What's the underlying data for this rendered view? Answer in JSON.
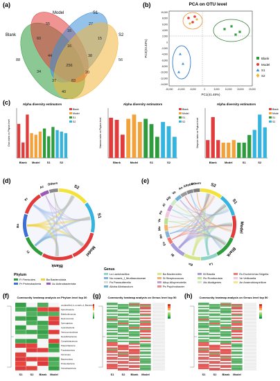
{
  "panels": {
    "a": "(a)",
    "b": "(b)",
    "c": "(c)",
    "d": "(d)",
    "e": "(e)",
    "f": "(f)",
    "g": "(g)",
    "h": "(h)"
  },
  "venn": {
    "sets": [
      "Blank",
      "Model",
      "S1",
      "S2"
    ],
    "colors": [
      "#2e9b3c",
      "#e23b3b",
      "#3d8fd6",
      "#f2b43a"
    ],
    "counts": [
      "88",
      "55",
      "27",
      "56",
      "60",
      "16",
      "15",
      "44",
      "16",
      "38",
      "34",
      "256",
      "20",
      "37",
      "83",
      "40"
    ]
  },
  "pca": {
    "title": "PCA on OTU level",
    "xlabel": "PC1(41.48%)",
    "ylabel": "PC2(23.33%)",
    "xticks": [
      "-15,000",
      "-10,000",
      "-5,000",
      "0",
      "5,000",
      "10,000",
      "15,000",
      "20,000"
    ],
    "yticks": [
      "10,000",
      "8,000",
      "6,000",
      "4,000",
      "2,000",
      "0",
      "-2,000",
      "-4,000",
      "-6,000",
      "-8,000",
      "-10,000",
      "-12,000",
      "-14,000"
    ],
    "legend": [
      "Blank",
      "Model",
      "S1",
      "S2"
    ],
    "colors": [
      "#2e9b3c",
      "#e23b3b",
      "#3d8fd6",
      "#f2b43a"
    ]
  },
  "alpha": {
    "title": "Alpha diversity estimators",
    "groups": [
      "Blank",
      "Model",
      "S1",
      "S2"
    ],
    "legend": [
      "Blank",
      "Model",
      "S1",
      "S2"
    ],
    "colors": [
      "#e23b3b",
      "#f2a23a",
      "#2e9b3c",
      "#35b4e0"
    ],
    "charts": [
      {
        "ylabel": "Chao index on Phylum level",
        "values": [
          2.2,
          1.0,
          2.8,
          1.6,
          1.5,
          1.7,
          1.9,
          1.4,
          2.0,
          1.8,
          1.7,
          1.6
        ]
      },
      {
        "ylabel": "Shannon index on Phylum level",
        "values": [
          1.9,
          1.8,
          1.1,
          1.85,
          2.05,
          1.7,
          1.85,
          1.6,
          1.0,
          1.7,
          1.5,
          1.0
        ]
      },
      {
        "ylabel": "Simpson index on Phylum level",
        "values": [
          0.35,
          0.8,
          0.35,
          0.3,
          0.3,
          0.35,
          0.3,
          0.3,
          0.45,
          0.55,
          0.85,
          0.6
        ]
      }
    ]
  },
  "chord_d": {
    "groups": [
      "S2",
      "S1",
      "Model",
      "Blank"
    ],
    "taxa": [
      "Fi",
      "Ba",
      "Pr",
      "Ac",
      "Others"
    ]
  },
  "chord_e": {
    "groups": [
      "S2",
      "S1",
      "Model",
      "Blank"
    ],
    "taxa": [
      "La",
      "Ba",
      "Bl",
      "Es",
      "Ro",
      "Mu",
      "Ve",
      "Pe",
      "Al",
      "Alp",
      "Ve",
      "An",
      "Alloba",
      "Others"
    ]
  },
  "legend_phylum": {
    "title": "Phylum",
    "items": [
      {
        "text": "Fi Firmicutes",
        "color": "#2e9b3c"
      },
      {
        "text": "Ba Bacteroidota",
        "color": "#f2d13a"
      },
      {
        "text": "Pr Proteobacteria",
        "color": "#3d6fd6"
      },
      {
        "text": "Ac Actinobacteriota",
        "color": "#9b59b6"
      }
    ]
  },
  "legend_genus": {
    "title": "Genus",
    "items": [
      {
        "text": "La Lactobacillus",
        "color": "#8fd3c8"
      },
      {
        "text": "Ba Bacteroides",
        "color": "#d5e58a"
      },
      {
        "text": "Bl Blautia",
        "color": "#a79ad8"
      },
      {
        "text": "Es Escherichia-Shigella",
        "color": "#f07a6a"
      },
      {
        "text": "No norank_f_Muribaculaceae",
        "color": "#7fb2dc"
      },
      {
        "text": "St Streptococcus",
        "color": "#f2b26a"
      },
      {
        "text": "Ro Romboutsia",
        "color": "#b9e08f"
      },
      {
        "text": "Ve Veillonella",
        "color": "#f3c6dc"
      },
      {
        "text": "Pa Parasutterella",
        "color": "#d9d9d9"
      },
      {
        "text": "Allop Alloprevotella",
        "color": "#c69bd2"
      },
      {
        "text": "Alc Akaligenes",
        "color": "#cfe9c7"
      },
      {
        "text": "An Anaerobiospirillum",
        "color": "#f7e58a"
      },
      {
        "text": "Alloba Allobaculum",
        "color": "#6fb0d6"
      },
      {
        "text": "Ps Psychrobacter",
        "color": "#e38d8d"
      }
    ]
  },
  "heat_f": {
    "title": "Community heatmap analysis on Phylum level top 30",
    "cols": [
      "S1",
      "S2",
      "Blank",
      "Model"
    ],
    "rows": [
      "unclassified_k_norank_d_Bacteria",
      "Spirochaetota",
      "Bdellovibrionota",
      "Deinococcota",
      "Synergistota",
      "Cyanobacteria",
      "Verrucomicrobiota",
      "Desulfobacterota",
      "Campilobacterota",
      "Patescibacteria",
      "Fusobacteriota",
      "Firmicutes",
      "Bacteroidota",
      "Proteobacteria",
      "Actinobacteriota"
    ],
    "scale": [
      "4",
      "2",
      "0",
      "-2",
      "-4"
    ]
  },
  "heat_g": {
    "title": "Community heatmap analysis on Genus level top 50",
    "cols": [
      "S1",
      "S2",
      "Blank",
      "Model"
    ]
  },
  "heat_h": {
    "title": "Community heatmap analysis on Genus level top 50",
    "cols": [
      "S1",
      "S2",
      "Blank",
      "Model"
    ]
  }
}
